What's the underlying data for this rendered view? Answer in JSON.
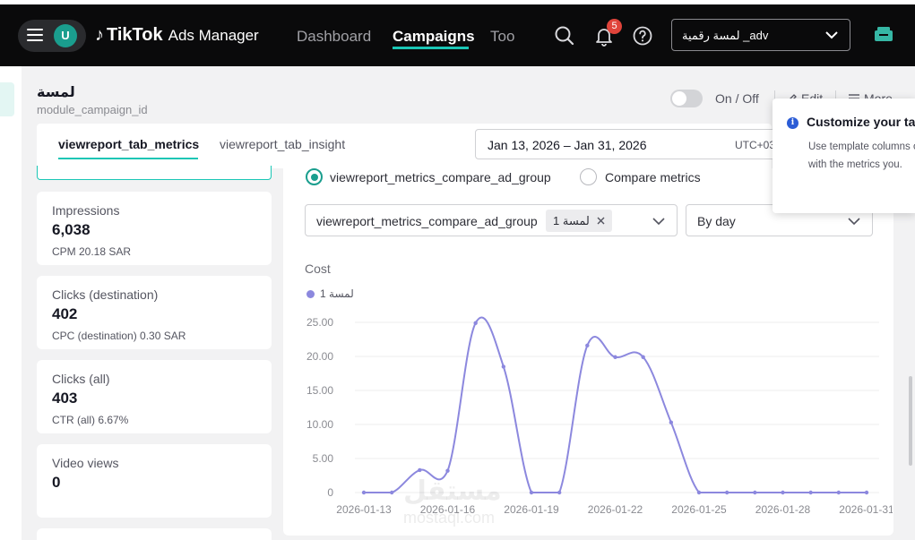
{
  "topnav": {
    "avatar_letter": "U",
    "logo_brand": "TikTok",
    "logo_sub": "Ads Manager",
    "links": [
      "Dashboard",
      "Campaigns",
      "Too"
    ],
    "active_link": "Campaigns",
    "notification_count": "5",
    "advertiser": "لمسة رقمية _adv"
  },
  "header": {
    "campaign_name": "لمسة",
    "campaign_id": "module_campaign_id",
    "status_label": "On / Off",
    "edit_label": "Edit",
    "more_label": "More"
  },
  "tabs": {
    "metrics": "viewreport_tab_metrics",
    "insight": "viewreport_tab_insight"
  },
  "date_range": {
    "value": "Jan 13, 2026 – Jan 31, 2026",
    "timezone": "UTC+03"
  },
  "metrics": [
    {
      "label": "Impressions",
      "value": "6,038",
      "sub": "CPM 20.18 SAR"
    },
    {
      "label": "Clicks (destination)",
      "value": "402",
      "sub": "CPC (destination) 0.30 SAR"
    },
    {
      "label": "Clicks (all)",
      "value": "403",
      "sub": "CTR (all) 6.67%"
    },
    {
      "label": "Video views",
      "value": "0",
      "sub": ""
    }
  ],
  "compare": {
    "option_ad_group": "viewreport_metrics_compare_ad_group",
    "option_metrics": "Compare metrics",
    "select_label": "viewreport_metrics_compare_ad_group",
    "selected_tag": "لمسة 1",
    "granularity": "By day"
  },
  "tooltip": {
    "title": "Customize your table",
    "body": "Use template columns or customize it with the metrics you."
  },
  "watermark": {
    "main": "مستقل",
    "sub": "mostaql.com"
  },
  "colors": {
    "accent": "#1ac6b5",
    "line": "#8c88de"
  },
  "chart_data": {
    "type": "line",
    "title": "Cost",
    "series": [
      {
        "name": "لمسة 1",
        "x": [
          "2026-01-13",
          "2026-01-14",
          "2026-01-15",
          "2026-01-16",
          "2026-01-17",
          "2026-01-18",
          "2026-01-19",
          "2026-01-20",
          "2026-01-21",
          "2026-01-22",
          "2026-01-23",
          "2026-01-24",
          "2026-01-25",
          "2026-01-26",
          "2026-01-27",
          "2026-01-28",
          "2026-01-29",
          "2026-01-30",
          "2026-01-31"
        ],
        "values": [
          0,
          0,
          3.3,
          3.2,
          24.9,
          18.5,
          0,
          0,
          21.6,
          19.9,
          19.9,
          10.3,
          0,
          0,
          0,
          0,
          0,
          0,
          0
        ]
      }
    ],
    "x_tick_labels": [
      "2026-01-13",
      "2026-01-16",
      "2026-01-19",
      "2026-01-22",
      "2026-01-25",
      "2026-01-28",
      "2026-01-31"
    ],
    "y_tick_labels": [
      "0",
      "5.00",
      "10.00",
      "15.00",
      "20.00",
      "25.00"
    ],
    "ylim": [
      0,
      25
    ],
    "grid": true,
    "legend_position": "top-left"
  }
}
